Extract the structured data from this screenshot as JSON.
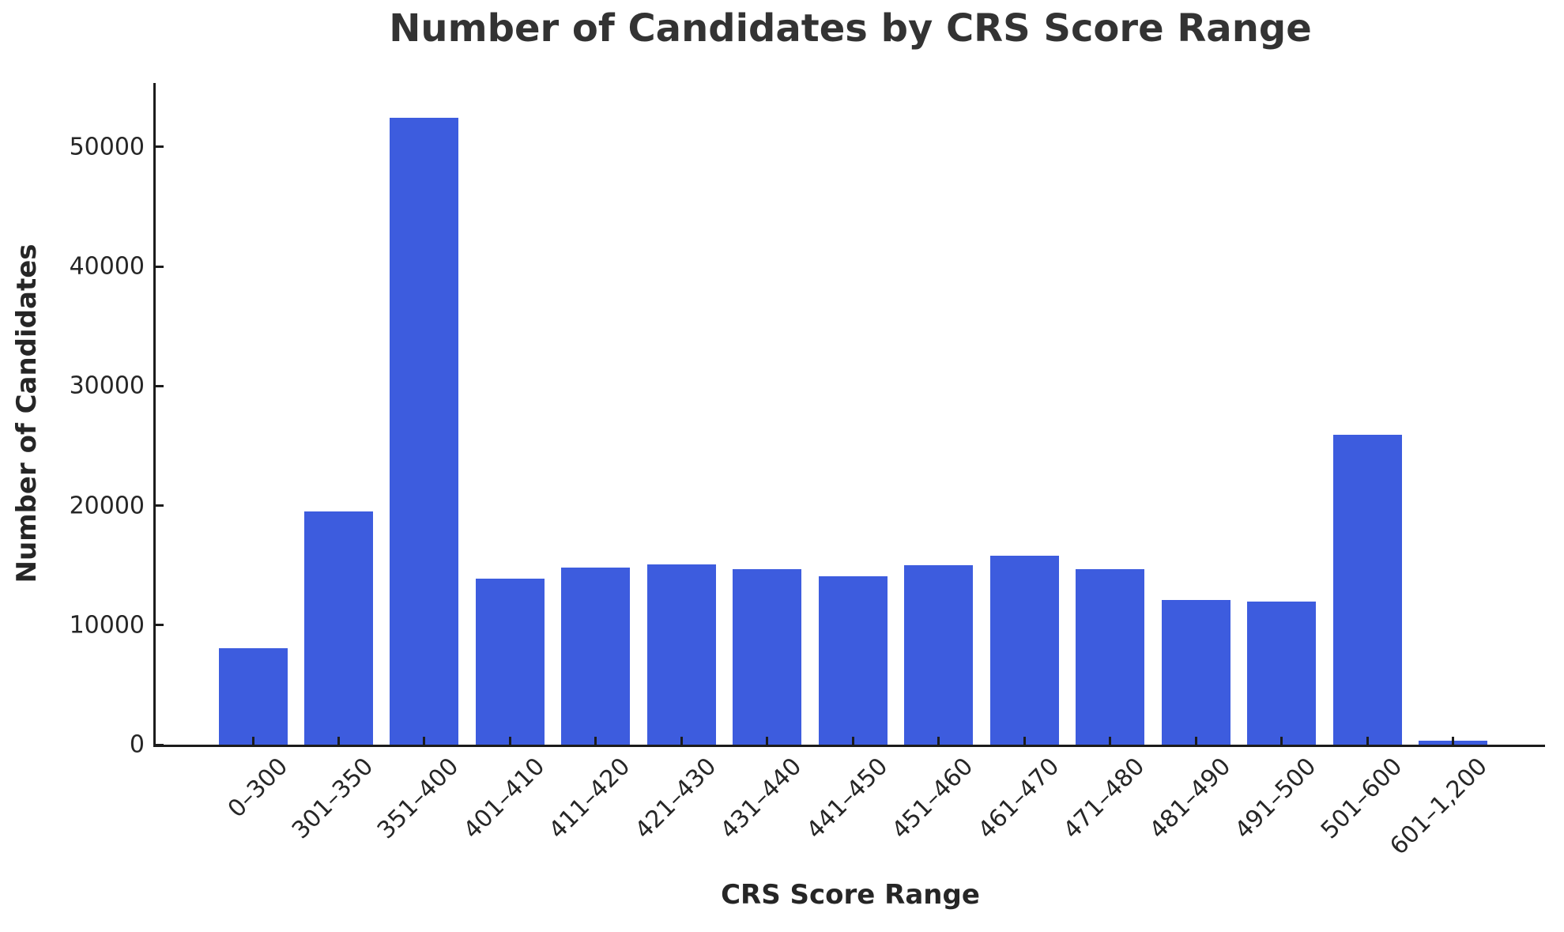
{
  "title": "Number of Candidates by CRS Score Range",
  "chart_data": {
    "type": "bar",
    "title": "Number of Candidates by CRS Score Range",
    "xlabel": "CRS Score Range",
    "ylabel": "Number of Candidates",
    "categories": [
      "0–300",
      "301–350",
      "351–400",
      "401–410",
      "411–420",
      "421–430",
      "431–440",
      "441–450",
      "451–460",
      "461–470",
      "471–480",
      "481–490",
      "491–500",
      "501–600",
      "601–1,200"
    ],
    "values": [
      8100,
      19500,
      52400,
      13900,
      14800,
      15100,
      14700,
      14100,
      15000,
      15800,
      14700,
      12100,
      12000,
      25900,
      350
    ],
    "yticks": [
      0,
      10000,
      20000,
      30000,
      40000,
      50000
    ],
    "ylim": [
      0,
      55300
    ],
    "x_tick_rotation": 45,
    "grid": false,
    "legend": "none",
    "bar_color": "#3D5CDE"
  },
  "colors": {
    "bar": "#3D5CDE",
    "axis": "#1c1c1c",
    "title_text": "#333333",
    "tick_text": "#262626",
    "background": "#ffffff"
  }
}
